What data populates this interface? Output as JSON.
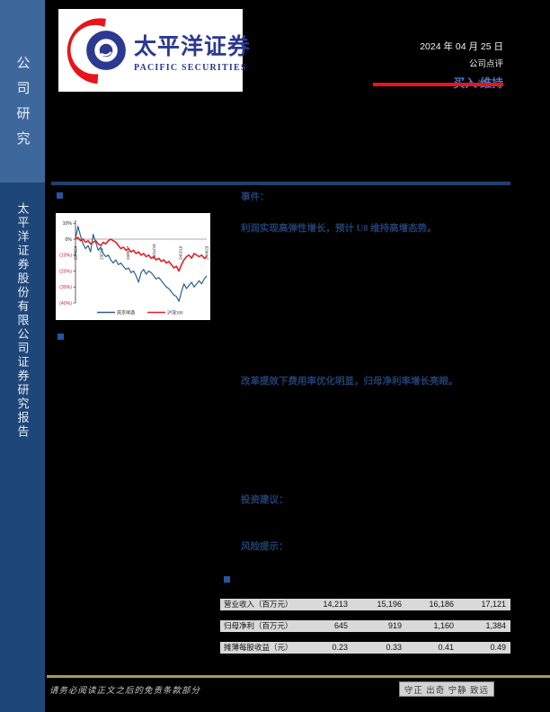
{
  "sidebar": {
    "top_label": "公司研究",
    "bottom_label": "太平洋证券股份有限公司证券研究报告",
    "top_bg": "#3e689c",
    "bottom_bg": "#1e4678"
  },
  "logo": {
    "cn": "太平洋证券",
    "en": "PACIFIC SECURITIES",
    "brand_blue": "#2b3990",
    "brand_red": "#e8131b"
  },
  "header": {
    "date": "2024 年 04 月 25 日",
    "report_type": "公司点评",
    "rating": "买入/维持",
    "rating_color": "#4a78c8",
    "underline_color": "#e8131b"
  },
  "sections": {
    "event_label": "事件：",
    "heading1": "利润实现高弹性增长，预计 U8 维持高增态势。",
    "heading2": "改革提效下费用率优化明显，归母净利率增长亮眼。",
    "advice_label": "投资建议：",
    "risk_label": "风险提示："
  },
  "chart_data": {
    "type": "line",
    "title": "",
    "y_ticks": [
      "10%",
      "0%",
      "(10%)",
      "(20%)",
      "(30%)",
      "(40%)"
    ],
    "y_tick_values": [
      10,
      0,
      -10,
      -20,
      -30,
      -40
    ],
    "ylim": [
      -40,
      10
    ],
    "x_ticks": [
      "23/4/24",
      "23/7/6",
      "23/9/17",
      "23/11/29",
      "24/2/10",
      "24/4/23"
    ],
    "grid": false,
    "legend_position": "bottom",
    "negative_label_color": "#cc2027",
    "series": [
      {
        "name": "燕京啤酒",
        "color": "#2d5f8e",
        "values": [
          0,
          8,
          2,
          -3,
          -6,
          -4,
          -8,
          3,
          -2,
          -7,
          -5,
          -9,
          -11,
          -10,
          -13,
          -15,
          -13,
          -16,
          -15,
          -17,
          -19,
          -18,
          -21,
          -20,
          -23,
          -27,
          -21,
          -19,
          -22,
          -20,
          -21,
          -23,
          -25,
          -24,
          -26,
          -28,
          -30,
          -31,
          -33,
          -35,
          -36,
          -39,
          -33,
          -28,
          -31,
          -29,
          -27,
          -30,
          -28,
          -26,
          -28,
          -25,
          -23
        ]
      },
      {
        "name": "沪深300",
        "color": "#e02028",
        "values": [
          0,
          1,
          -1,
          0,
          -2,
          -1,
          -3,
          -2,
          -1,
          -3,
          -4,
          -2,
          -3,
          -1,
          0,
          -1,
          -2,
          -4,
          -6,
          -5,
          -7,
          -6,
          -8,
          -7,
          -9,
          -8,
          -10,
          -9,
          -11,
          -10,
          -12,
          -11,
          -13,
          -12,
          -14,
          -13,
          -15,
          -14,
          -16,
          -18,
          -17,
          -20,
          -16,
          -13,
          -11,
          -10,
          -12,
          -9,
          -10,
          -11,
          -10,
          -12,
          -11
        ]
      }
    ]
  },
  "table": {
    "rows": [
      {
        "label": "营业收入（百万元）",
        "values": [
          "14,213",
          "15,196",
          "16,186",
          "17,121"
        ]
      },
      {
        "label": "归母净利（百万元）",
        "values": [
          "645",
          "919",
          "1,160",
          "1,384"
        ]
      },
      {
        "label": "摊薄每股收益（元）",
        "values": [
          "0.23",
          "0.33",
          "0.41",
          "0.49"
        ]
      }
    ]
  },
  "footer": {
    "disclaimer": "请务必阅读正文之后的免责条款部分",
    "motto": "守正 出奇 宁静 致远",
    "line_color": "#ab9950"
  }
}
